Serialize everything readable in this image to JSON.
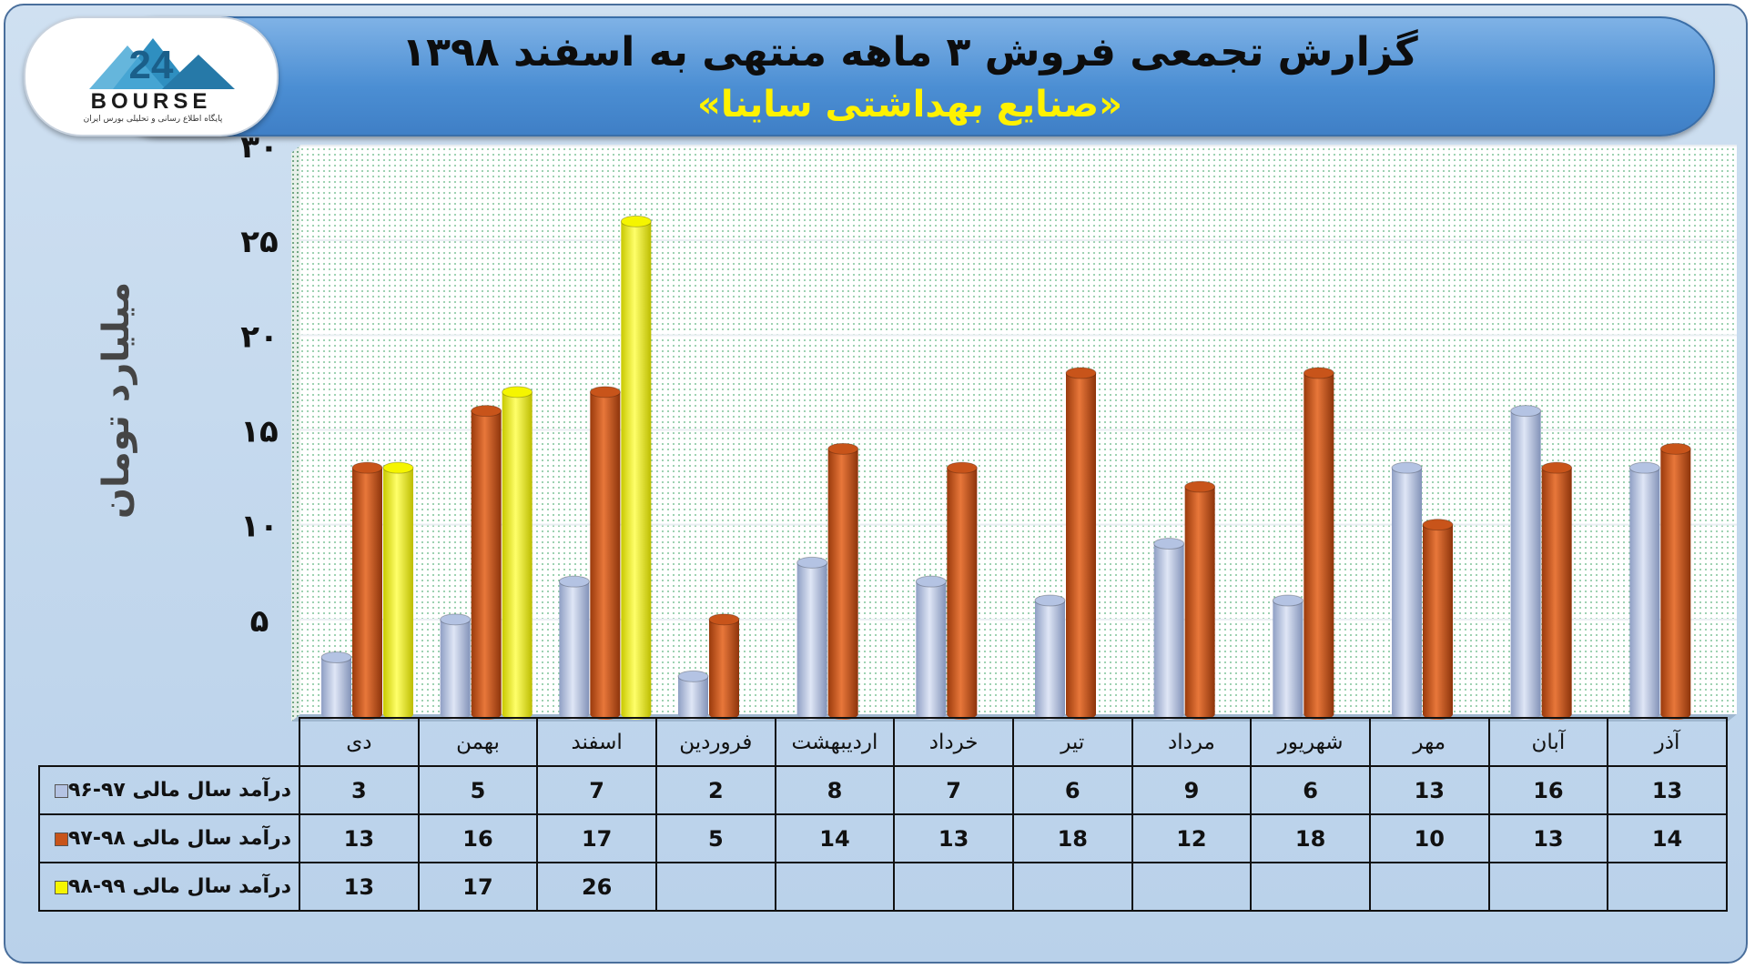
{
  "header": {
    "title": "گزارش تجمعی فروش ۳ ماهه منتهی به اسفند ۱۳۹۸",
    "subtitle": "«صنایع بهداشتی ساینا»"
  },
  "logo": {
    "text": "BOURSE",
    "caption": "پایگاه اطلاع رسانی و تحلیلی بورس ایران"
  },
  "chart_data": {
    "type": "bar",
    "ylabel": "میلیارد تومان",
    "ylim": [
      0,
      30
    ],
    "yticks": [
      "۵",
      "۱۰",
      "۱۵",
      "۲۰",
      "۲۵",
      "۳۰"
    ],
    "categories": [
      "دی",
      "بهمن",
      "اسفند",
      "فروردین",
      "اردیبهشت",
      "خرداد",
      "تیر",
      "مرداد",
      "شهریور",
      "مهر",
      "آبان",
      "آذر"
    ],
    "series": [
      {
        "name": "درآمد سال مالی ۹۷-۹۶",
        "color": "#b4c3e3",
        "values": [
          3,
          5,
          7,
          2,
          8,
          7,
          6,
          9,
          6,
          13,
          16,
          13
        ]
      },
      {
        "name": "درآمد سال مالی ۹۸-۹۷",
        "color": "#c8541a",
        "values": [
          13,
          16,
          17,
          5,
          14,
          13,
          18,
          12,
          18,
          10,
          13,
          14
        ]
      },
      {
        "name": "درآمد سال مالی ۹۹-۹۸",
        "color": "#f5f500",
        "values": [
          13,
          17,
          26,
          null,
          null,
          null,
          null,
          null,
          null,
          null,
          null,
          null
        ]
      }
    ],
    "grid": true,
    "legend": "table-left"
  }
}
